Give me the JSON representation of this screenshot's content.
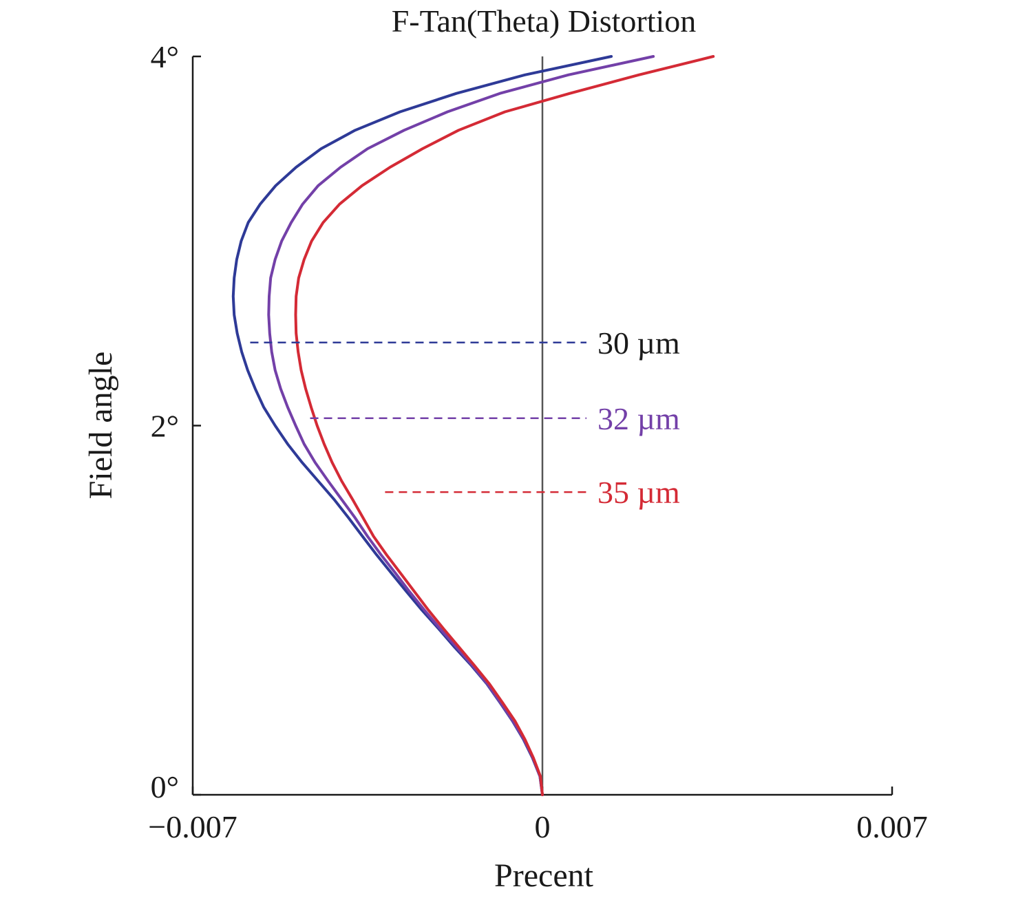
{
  "chart_data": {
    "type": "line",
    "title": "F-Tan(Theta) Distortion",
    "xlabel": "Precent",
    "ylabel": "Field angle",
    "xlim": [
      -0.007,
      0.007
    ],
    "ylim": [
      0,
      4
    ],
    "x_ticks": [
      {
        "value": -0.007,
        "label": "−0.007"
      },
      {
        "value": 0,
        "label": "0"
      },
      {
        "value": 0.007,
        "label": "0.007"
      }
    ],
    "y_ticks": [
      {
        "value": 0,
        "label": "0°"
      },
      {
        "value": 2,
        "label": "2°"
      },
      {
        "value": 4,
        "label": "4°"
      }
    ],
    "zero_line": true,
    "grid": false,
    "series": [
      {
        "name": "30 µm",
        "color": "#2e3a97",
        "label_y": 2.45,
        "label_x_start": -0.00585,
        "points": [
          [
            0,
            0
          ],
          [
            -5e-05,
            0.1
          ],
          [
            -0.0002,
            0.2
          ],
          [
            -0.00038,
            0.3
          ],
          [
            -0.0006,
            0.4
          ],
          [
            -0.00085,
            0.5
          ],
          [
            -0.00111,
            0.6
          ],
          [
            -0.00142,
            0.7
          ],
          [
            -0.00176,
            0.8
          ],
          [
            -0.00208,
            0.9
          ],
          [
            -0.00241,
            1.0
          ],
          [
            -0.00272,
            1.1
          ],
          [
            -0.00302,
            1.2
          ],
          [
            -0.00332,
            1.3
          ],
          [
            -0.0036,
            1.4
          ],
          [
            -0.00388,
            1.5
          ],
          [
            -0.00417,
            1.6
          ],
          [
            -0.00449,
            1.7
          ],
          [
            -0.00481,
            1.8
          ],
          [
            -0.0051,
            1.9
          ],
          [
            -0.00535,
            2.0
          ],
          [
            -0.00558,
            2.1
          ],
          [
            -0.00575,
            2.2
          ],
          [
            -0.0059,
            2.3
          ],
          [
            -0.00602,
            2.4
          ],
          [
            -0.00611,
            2.5
          ],
          [
            -0.00617,
            2.6
          ],
          [
            -0.00619,
            2.7
          ],
          [
            -0.00617,
            2.8
          ],
          [
            -0.00612,
            2.9
          ],
          [
            -0.00603,
            3.0
          ],
          [
            -0.00589,
            3.1
          ],
          [
            -0.00565,
            3.2
          ],
          [
            -0.00534,
            3.3
          ],
          [
            -0.00493,
            3.4
          ],
          [
            -0.00443,
            3.5
          ],
          [
            -0.00375,
            3.6
          ],
          [
            -0.00285,
            3.7
          ],
          [
            -0.00172,
            3.8
          ],
          [
            -0.00035,
            3.9
          ],
          [
            0.00138,
            4.0
          ]
        ]
      },
      {
        "name": "32 µm",
        "color": "#7340a8",
        "label_y": 2.04,
        "label_x_start": -0.00465,
        "points": [
          [
            0,
            0
          ],
          [
            -5e-05,
            0.1
          ],
          [
            -0.00019,
            0.2
          ],
          [
            -0.00037,
            0.3
          ],
          [
            -0.00059,
            0.4
          ],
          [
            -0.00084,
            0.5
          ],
          [
            -0.0011,
            0.6
          ],
          [
            -0.0014,
            0.7
          ],
          [
            -0.00172,
            0.8
          ],
          [
            -0.00205,
            0.9
          ],
          [
            -0.00236,
            1.0
          ],
          [
            -0.00266,
            1.1
          ],
          [
            -0.00294,
            1.2
          ],
          [
            -0.00323,
            1.3
          ],
          [
            -0.0035,
            1.4
          ],
          [
            -0.00375,
            1.5
          ],
          [
            -0.00402,
            1.6
          ],
          [
            -0.00429,
            1.7
          ],
          [
            -0.00455,
            1.8
          ],
          [
            -0.00477,
            1.9
          ],
          [
            -0.00494,
            2.0
          ],
          [
            -0.0051,
            2.1
          ],
          [
            -0.00524,
            2.2
          ],
          [
            -0.00535,
            2.3
          ],
          [
            -0.00542,
            2.4
          ],
          [
            -0.00546,
            2.5
          ],
          [
            -0.00548,
            2.6
          ],
          [
            -0.00547,
            2.7
          ],
          [
            -0.00544,
            2.8
          ],
          [
            -0.00535,
            2.9
          ],
          [
            -0.00522,
            3.0
          ],
          [
            -0.00503,
            3.1
          ],
          [
            -0.0048,
            3.2
          ],
          [
            -0.00449,
            3.3
          ],
          [
            -0.00404,
            3.4
          ],
          [
            -0.0035,
            3.5
          ],
          [
            -0.00277,
            3.6
          ],
          [
            -0.0019,
            3.7
          ],
          [
            -0.00085,
            3.8
          ],
          [
            0.00052,
            3.9
          ],
          [
            0.00222,
            4.0
          ]
        ]
      },
      {
        "name": "35 µm",
        "color": "#d42a35",
        "label_y": 1.64,
        "label_x_start": -0.00315,
        "points": [
          [
            0,
            0
          ],
          [
            -4e-05,
            0.1
          ],
          [
            -0.00018,
            0.2
          ],
          [
            -0.00035,
            0.3
          ],
          [
            -0.00055,
            0.4
          ],
          [
            -0.0008,
            0.5
          ],
          [
            -0.00106,
            0.6
          ],
          [
            -0.00136,
            0.7
          ],
          [
            -0.00167,
            0.8
          ],
          [
            -0.00198,
            0.9
          ],
          [
            -0.00228,
            1.0
          ],
          [
            -0.00256,
            1.1
          ],
          [
            -0.00284,
            1.2
          ],
          [
            -0.00312,
            1.3
          ],
          [
            -0.00338,
            1.4
          ],
          [
            -0.00359,
            1.5
          ],
          [
            -0.0038,
            1.6
          ],
          [
            -0.00402,
            1.7
          ],
          [
            -0.00421,
            1.8
          ],
          [
            -0.00437,
            1.9
          ],
          [
            -0.00451,
            2.0
          ],
          [
            -0.00463,
            2.1
          ],
          [
            -0.00474,
            2.2
          ],
          [
            -0.00483,
            2.3
          ],
          [
            -0.00489,
            2.4
          ],
          [
            -0.00493,
            2.5
          ],
          [
            -0.00494,
            2.6
          ],
          [
            -0.00493,
            2.7
          ],
          [
            -0.00488,
            2.8
          ],
          [
            -0.00477,
            2.9
          ],
          [
            -0.00462,
            3.0
          ],
          [
            -0.00439,
            3.1
          ],
          [
            -0.00406,
            3.2
          ],
          [
            -0.00361,
            3.3
          ],
          [
            -0.00305,
            3.4
          ],
          [
            -0.0024,
            3.5
          ],
          [
            -0.00168,
            3.6
          ],
          [
            -0.00075,
            3.7
          ],
          [
            0.00055,
            3.8
          ],
          [
            0.00193,
            3.9
          ],
          [
            0.00342,
            4.0
          ]
        ]
      }
    ]
  }
}
